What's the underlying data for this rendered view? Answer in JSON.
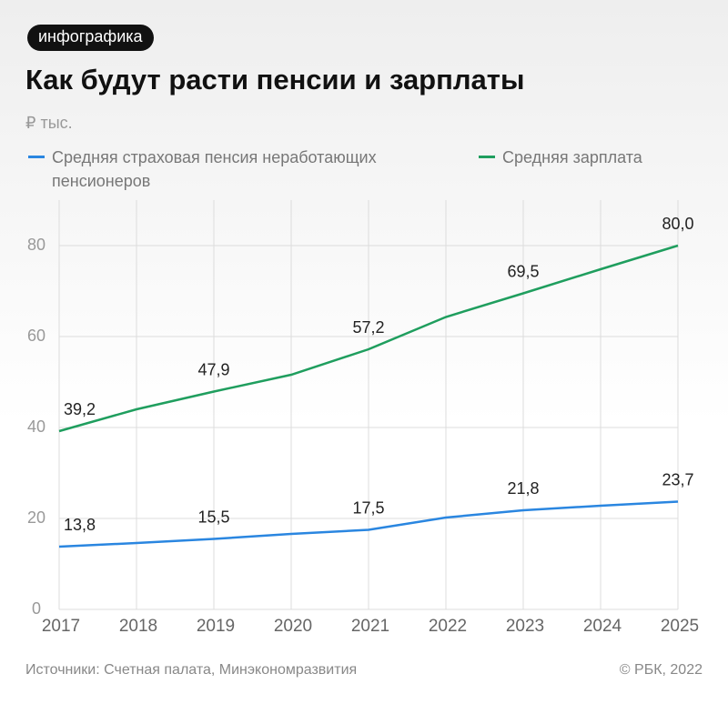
{
  "tag": "инфографика",
  "chart_data": {
    "type": "line",
    "title": "Как будут расти пенсии и зарплаты",
    "y_label": "₽ тыс.",
    "categories": [
      "2017",
      "2018",
      "2019",
      "2020",
      "2021",
      "2022",
      "2023",
      "2024",
      "2025"
    ],
    "series": [
      {
        "name": "Средняя страховая пенсия неработающих пенсионеров",
        "color": "#2a86e0",
        "values": [
          13.8,
          14.6,
          15.5,
          16.6,
          17.5,
          20.2,
          21.8,
          22.8,
          23.7
        ],
        "value_labels": [
          "13,8",
          null,
          "15,5",
          null,
          "17,5",
          null,
          "21,8",
          null,
          "23,7"
        ]
      },
      {
        "name": "Средняя зарплата",
        "color": "#1f9e5e",
        "values": [
          39.2,
          44.0,
          47.9,
          51.6,
          57.2,
          64.3,
          69.5,
          74.8,
          80.0
        ],
        "value_labels": [
          "39,2",
          null,
          "47,9",
          null,
          "57,2",
          null,
          "69,5",
          null,
          "80,0"
        ]
      }
    ],
    "ylim": [
      0,
      90
    ],
    "yticks": [
      0,
      20,
      40,
      60,
      80
    ],
    "grid": true
  },
  "footer": {
    "source": "Источники: Счетная палата, Минэкономразвития",
    "credit": "© РБК, 2022"
  }
}
